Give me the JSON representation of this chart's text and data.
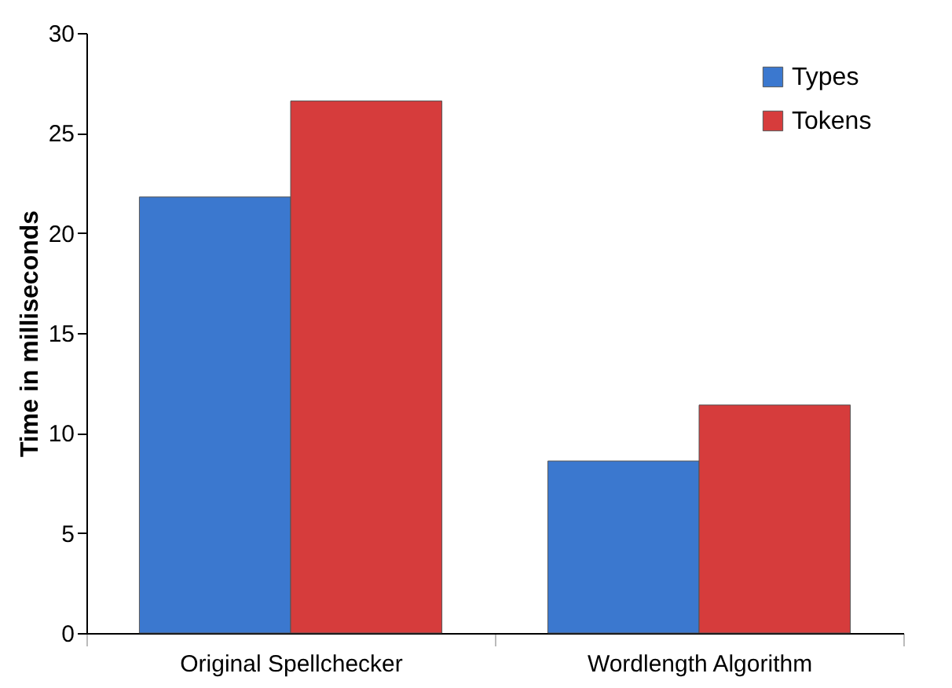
{
  "chart_data": {
    "type": "bar",
    "ylabel": "Time in milliseconds",
    "categories": [
      "Original Spellchecker",
      "Wordlength Algorithm"
    ],
    "series": [
      {
        "name": "Types",
        "color": "#3b78cf",
        "values": [
          21.8,
          8.6
        ]
      },
      {
        "name": "Tokens",
        "color": "#d63c3c",
        "values": [
          26.6,
          11.4
        ]
      }
    ],
    "ylim": [
      0,
      30
    ],
    "yticks": [
      0,
      5,
      10,
      15,
      20,
      25,
      30
    ],
    "grid": false,
    "legend": "top right"
  }
}
